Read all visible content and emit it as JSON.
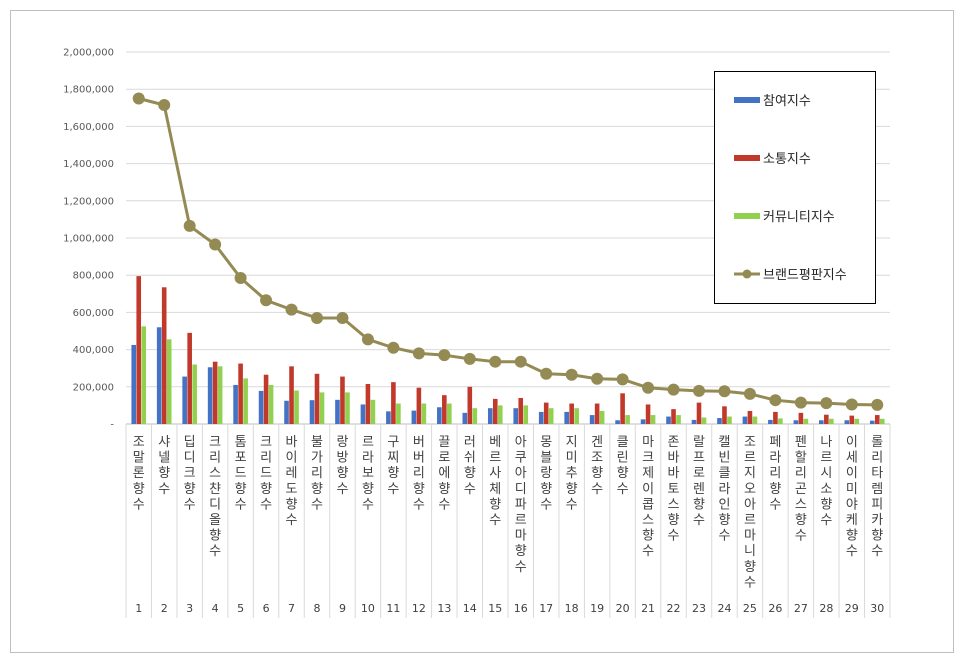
{
  "chart_data": {
    "type": "bar",
    "ylim": [
      0,
      2000000
    ],
    "yticks": [
      0,
      200000,
      400000,
      600000,
      800000,
      1000000,
      1200000,
      1400000,
      1600000,
      1800000,
      2000000
    ],
    "ytick_labels": [
      "-",
      "200,000",
      "400,000",
      "600,000",
      "800,000",
      "1,000,000",
      "1,200,000",
      "1,400,000",
      "1,600,000",
      "1,800,000",
      "2,000,000"
    ],
    "grid": true,
    "legend": "top-right",
    "categories": [
      "조말론 향수",
      "샤넬 향수",
      "딥디크 향수",
      "크리스챤디올 향수",
      "톰포드 향수",
      "크리드 향수",
      "바이레도 향수",
      "불가리 향수",
      "랑방 향수",
      "르라보 향수",
      "구찌 향수",
      "버버리 향수",
      "끌로에 향수",
      "러쉬 향수",
      "베르사체 향수",
      "아쿠아디파르마 향수",
      "몽블랑 향수",
      "지미추 향수",
      "겐조 향수",
      "클린 향수",
      "마크제이콥스 향수",
      "존바바토스 향수",
      "랄프로렌 향수",
      "캘빈클라인 향수",
      "조르지오아르마니 향수",
      "페라리 향수",
      "펜할리곤스 향수",
      "나르시소 향수",
      "이세이미야케 향수",
      "롤리타렘피카 향수"
    ],
    "ranks": [
      "1",
      "2",
      "3",
      "4",
      "5",
      "6",
      "7",
      "8",
      "9",
      "10",
      "11",
      "12",
      "13",
      "14",
      "15",
      "16",
      "17",
      "18",
      "19",
      "20",
      "21",
      "22",
      "23",
      "24",
      "25",
      "26",
      "27",
      "28",
      "29",
      "30"
    ],
    "series": [
      {
        "name": "참여지수",
        "kind": "bar",
        "color": "#4472c4",
        "values": [
          425000,
          520000,
          255000,
          305000,
          210000,
          178000,
          125000,
          128000,
          130000,
          105000,
          68000,
          72000,
          90000,
          60000,
          85000,
          85000,
          65000,
          65000,
          48000,
          20000,
          25000,
          40000,
          22000,
          32000,
          40000,
          22000,
          20000,
          20000,
          20000,
          18000
        ]
      },
      {
        "name": "소통지수",
        "kind": "bar",
        "color": "#c0392b",
        "values": [
          795000,
          735000,
          490000,
          335000,
          325000,
          265000,
          310000,
          270000,
          255000,
          215000,
          225000,
          195000,
          155000,
          200000,
          135000,
          140000,
          115000,
          110000,
          110000,
          165000,
          105000,
          80000,
          115000,
          95000,
          70000,
          65000,
          60000,
          50000,
          45000,
          48000
        ]
      },
      {
        "name": "커뮤니티지수",
        "kind": "bar",
        "color": "#92d050",
        "values": [
          525000,
          455000,
          320000,
          310000,
          245000,
          210000,
          180000,
          170000,
          170000,
          130000,
          110000,
          110000,
          110000,
          85000,
          100000,
          100000,
          85000,
          85000,
          70000,
          48000,
          48000,
          48000,
          35000,
          40000,
          40000,
          30000,
          28000,
          28000,
          28000,
          28000
        ]
      },
      {
        "name": "브랜드평판지수",
        "kind": "line",
        "color": "#948a54",
        "values": [
          1750000,
          1715000,
          1065000,
          965000,
          785000,
          665000,
          615000,
          570000,
          570000,
          455000,
          410000,
          380000,
          370000,
          350000,
          335000,
          335000,
          270000,
          265000,
          243000,
          240000,
          195000,
          185000,
          178000,
          176000,
          162000,
          128000,
          115000,
          112000,
          105000,
          103000
        ]
      }
    ]
  }
}
